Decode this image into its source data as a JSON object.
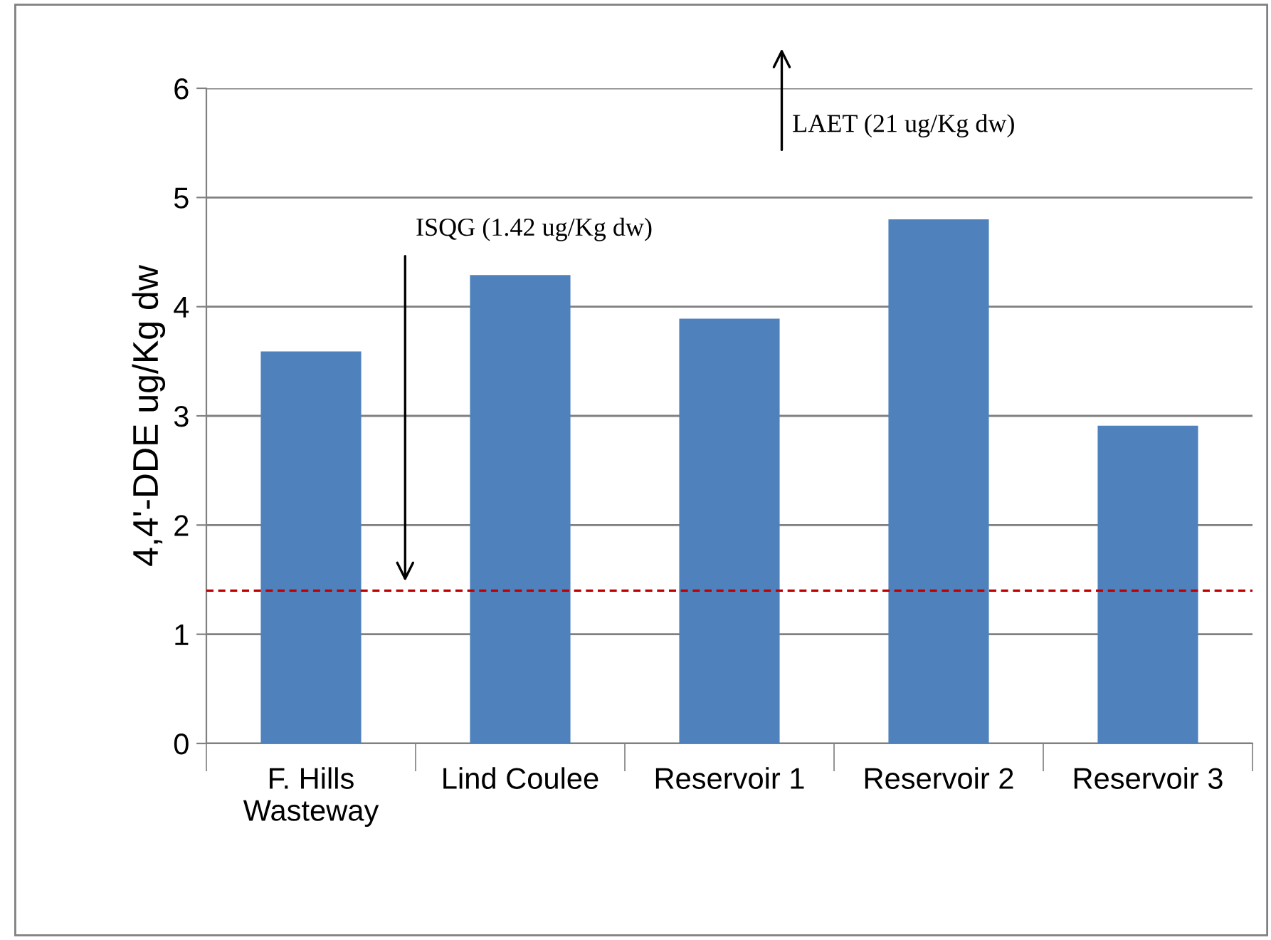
{
  "chart_data": {
    "type": "bar",
    "ylabel": "4,4'-DDE ug/Kg dw",
    "categories": [
      "F. Hills\nWasteway",
      "Lind Coulee",
      "Reservoir 1",
      "Reservoir 2",
      "Reservoir 3"
    ],
    "values": [
      3.59,
      4.29,
      3.89,
      4.8,
      2.91
    ],
    "color": "#4f81bd",
    "ylim": [
      0,
      6
    ],
    "yticks": [
      0,
      1,
      2,
      3,
      4,
      5,
      6
    ],
    "grid": "y",
    "ref_lines": [
      {
        "axis": "y",
        "value": 1.4,
        "color": "#c00000",
        "line_style": "dashed"
      }
    ],
    "annotations": [
      "ISQG (1.42 ug/Kg dw)",
      "LAET (21 ug/Kg dw)"
    ]
  }
}
